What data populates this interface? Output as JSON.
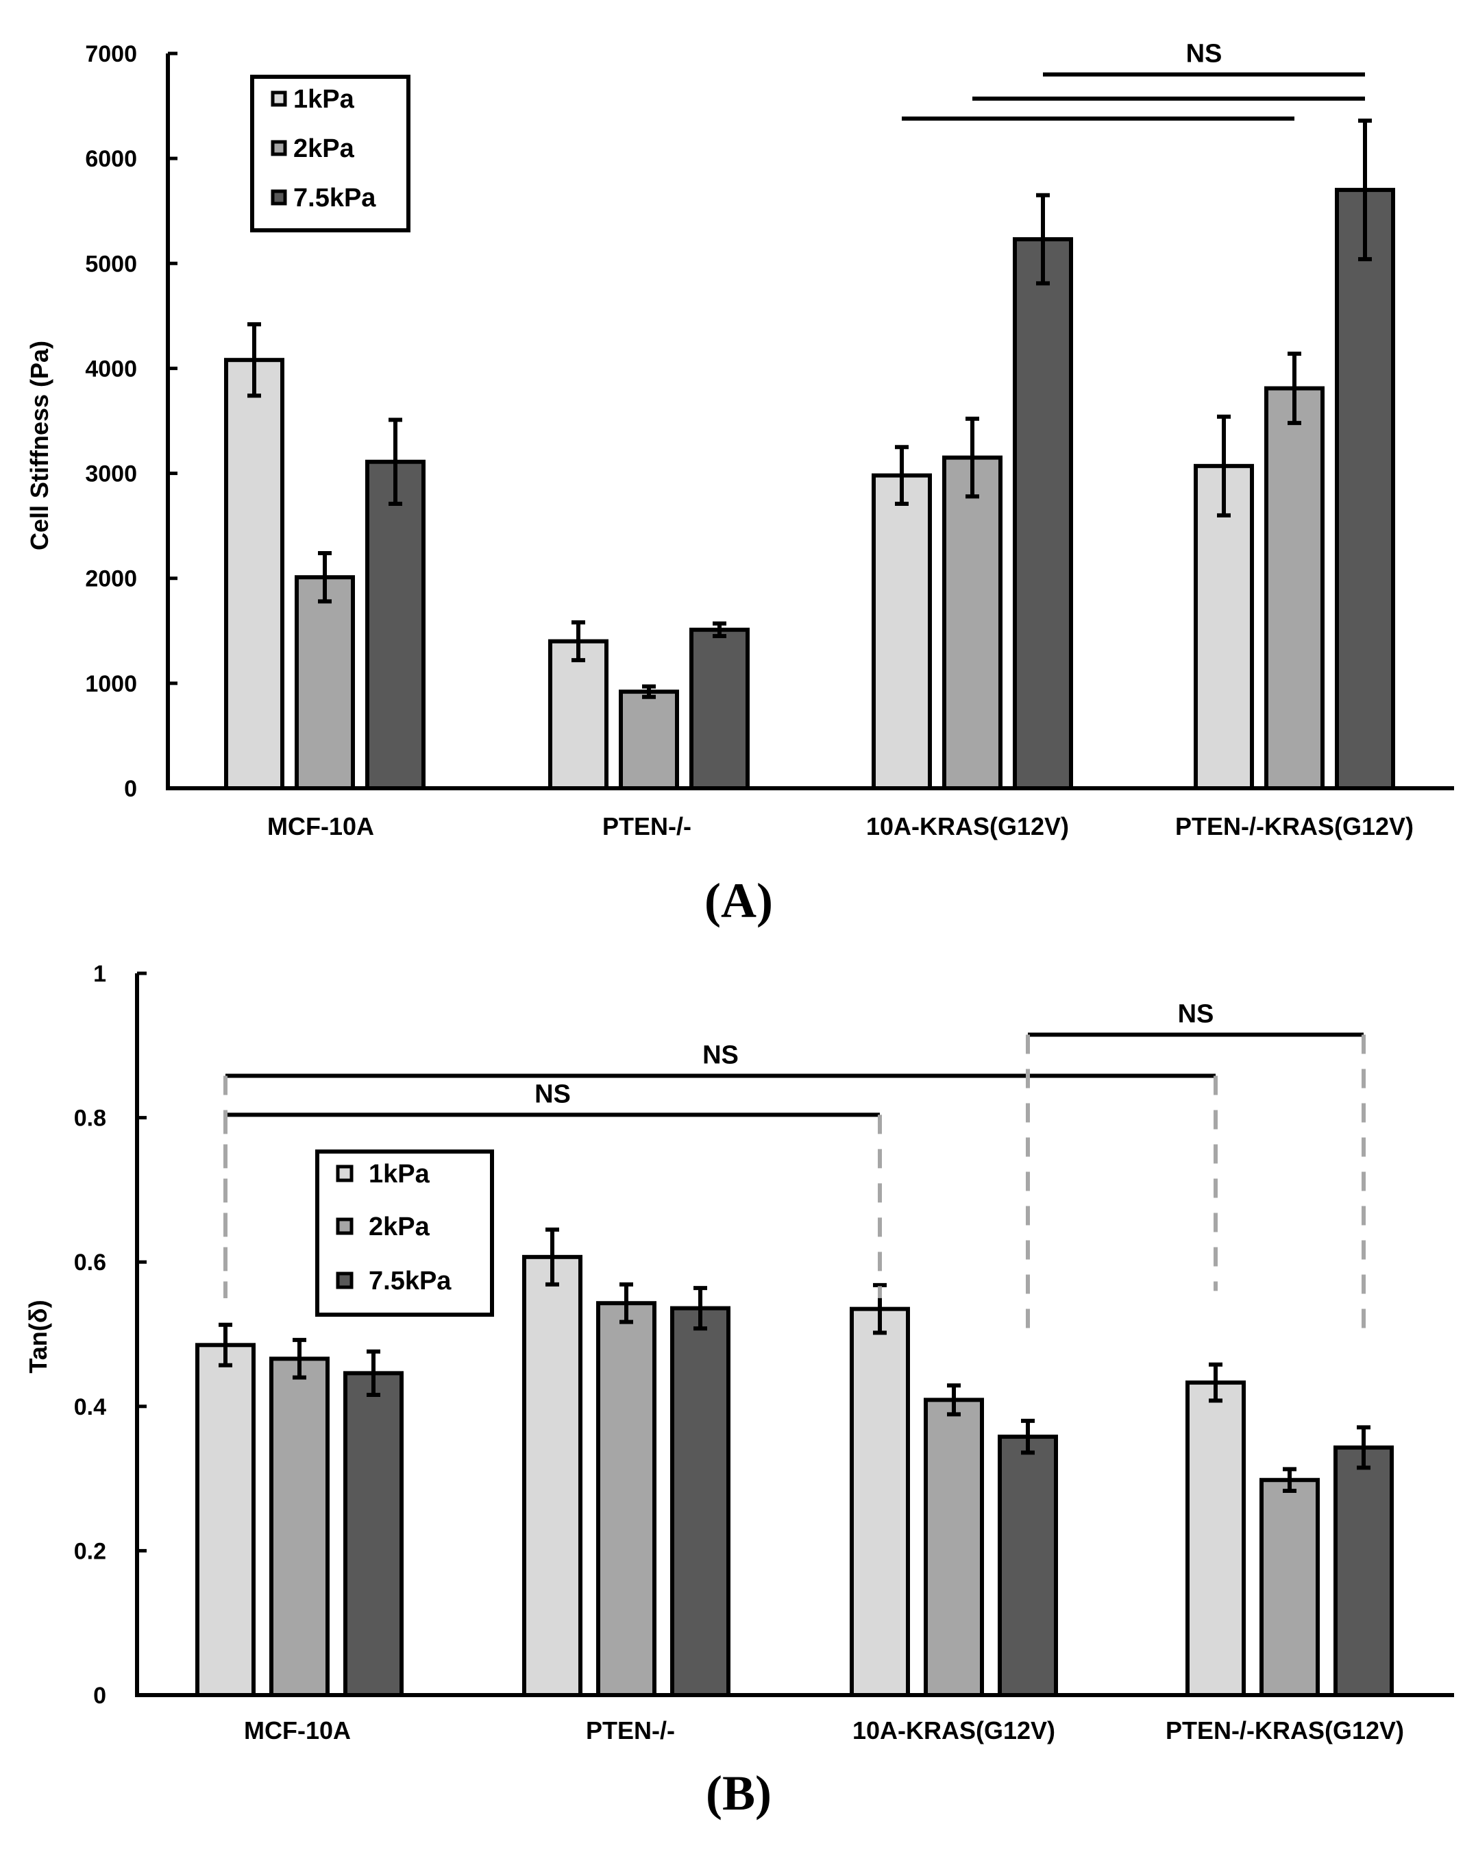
{
  "colors": {
    "s1": "#d9d9d9",
    "s2": "#a6a6a6",
    "s3": "#595959",
    "ns_dash": "#a6a6a6"
  },
  "chart_data": [
    {
      "type": "bar",
      "panel_label": "(A)",
      "title": "",
      "xlabel": "",
      "ylabel": "Cell Stiffness (Pa)",
      "ylim": [
        0,
        7000
      ],
      "yticks": [
        "0",
        "1000",
        "2000",
        "3000",
        "4000",
        "5000",
        "6000",
        "7000"
      ],
      "categories": [
        "MCF-10A",
        "PTEN-/-",
        "10A-KRAS(G12V)",
        "PTEN-/-KRAS(G12V)"
      ],
      "legend": {
        "placement": "top-left",
        "entries": [
          "1kPa",
          "2kPa",
          "7.5kPa"
        ]
      },
      "series": [
        {
          "name": "1kPa",
          "values": [
            4080,
            1400,
            2980,
            3070
          ],
          "errors": [
            340,
            180,
            270,
            470
          ]
        },
        {
          "name": "2kPa",
          "values": [
            2010,
            920,
            3150,
            3810
          ],
          "errors": [
            230,
            50,
            370,
            330
          ]
        },
        {
          "name": "7.5kPa",
          "values": [
            3110,
            1510,
            5230,
            5700
          ],
          "errors": [
            400,
            60,
            420,
            660
          ]
        }
      ],
      "annotations": [
        {
          "text": "NS",
          "style": "solid",
          "levels": [
            {
              "from": [
                2,
                0
              ],
              "to": [
                3,
                1
              ],
              "y": 6380
            },
            {
              "from": [
                2,
                1
              ],
              "to": [
                3,
                2
              ],
              "y": 6570
            },
            {
              "from": [
                2,
                2
              ],
              "to": [
                3,
                2
              ],
              "y": 6800
            }
          ]
        }
      ]
    },
    {
      "type": "bar",
      "panel_label": "(B)",
      "title": "",
      "xlabel": "",
      "ylabel": "Tan(δ)",
      "ylim": [
        0,
        1
      ],
      "yticks": [
        "0",
        "0.2",
        "0.4",
        "0.6",
        "0.8",
        "1"
      ],
      "categories": [
        "MCF-10A",
        "PTEN-/-",
        "10A-KRAS(G12V)",
        "PTEN-/-KRAS(G12V)"
      ],
      "legend": {
        "placement": "upper-left",
        "entries": [
          "1kPa",
          "2kPa",
          "7.5kPa"
        ]
      },
      "series": [
        {
          "name": "1kPa",
          "values": [
            0.485,
            0.607,
            0.535,
            0.433
          ],
          "errors": [
            0.028,
            0.038,
            0.033,
            0.025
          ]
        },
        {
          "name": "2kPa",
          "values": [
            0.466,
            0.543,
            0.409,
            0.298
          ],
          "errors": [
            0.026,
            0.026,
            0.02,
            0.015
          ]
        },
        {
          "name": "7.5kPa",
          "values": [
            0.446,
            0.536,
            0.358,
            0.343
          ],
          "errors": [
            0.03,
            0.028,
            0.022,
            0.028
          ]
        }
      ],
      "annotations": [
        {
          "text": "NS",
          "from": [
            0,
            0
          ],
          "to": [
            2,
            0
          ],
          "y": 0.804,
          "drop_to": [
            0.55,
            0.55
          ]
        },
        {
          "text": "NS",
          "from": [
            0,
            0
          ],
          "to": [
            3,
            0
          ],
          "y": 0.858,
          "drop_to": [
            0.55,
            0.56
          ]
        },
        {
          "text": "NS",
          "from": [
            2,
            2
          ],
          "to": [
            3,
            2
          ],
          "y": 0.915,
          "drop_to": [
            0.5,
            0.5
          ]
        }
      ]
    }
  ]
}
